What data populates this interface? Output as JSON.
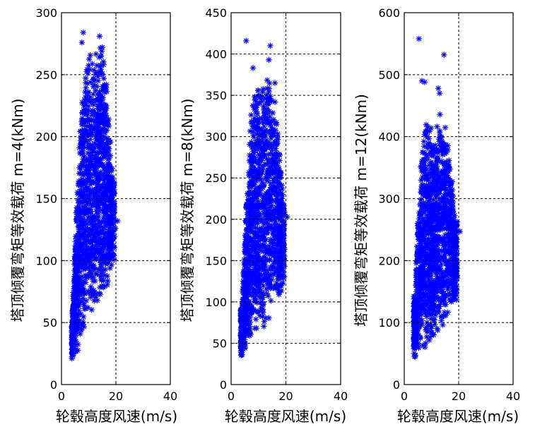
{
  "chart_data": [
    {
      "type": "scatter",
      "xlabel": "轮毂高度风速(m/s)",
      "ylabel": "塔顶倾覆弯矩等效载荷 m=4(kNm)",
      "xlim": [
        0,
        40
      ],
      "ylim": [
        0,
        300
      ],
      "xticks": [
        0,
        20,
        40
      ],
      "yticks": [
        0,
        50,
        100,
        150,
        200,
        250,
        300
      ],
      "grid": true,
      "marker": "*",
      "color": "#0000ff",
      "series": [
        {
          "envelope": {
            "x_min": 3.8,
            "x_max": 19.5,
            "points": [
              {
                "x": 4,
                "lo": 20,
                "hi": 60
              },
              {
                "x": 5,
                "lo": 22,
                "hi": 125
              },
              {
                "x": 6,
                "lo": 25,
                "hi": 170
              },
              {
                "x": 7,
                "lo": 30,
                "hi": 215
              },
              {
                "x": 8,
                "lo": 36,
                "hi": 255
              },
              {
                "x": 9,
                "lo": 42,
                "hi": 280
              },
              {
                "x": 10,
                "lo": 48,
                "hi": 275
              },
              {
                "x": 11,
                "lo": 52,
                "hi": 265
              },
              {
                "x": 12,
                "lo": 56,
                "hi": 268
              },
              {
                "x": 13,
                "lo": 60,
                "hi": 275
              },
              {
                "x": 14,
                "lo": 62,
                "hi": 282
              },
              {
                "x": 15,
                "lo": 65,
                "hi": 280
              },
              {
                "x": 16,
                "lo": 70,
                "hi": 265
              },
              {
                "x": 17,
                "lo": 78,
                "hi": 235
              },
              {
                "x": 18,
                "lo": 88,
                "hi": 200
              },
              {
                "x": 19,
                "lo": 95,
                "hi": 170
              }
            ]
          },
          "outliers": [
            [
              8,
              284
            ],
            [
              7.5,
              276
            ],
            [
              14,
              281
            ],
            [
              15,
              272
            ],
            [
              16.5,
              242
            ],
            [
              20.6,
              132
            ],
            [
              19.8,
              126
            ],
            [
              18.5,
              140
            ],
            [
              4.5,
              32
            ]
          ]
        }
      ]
    },
    {
      "type": "scatter",
      "xlabel": "轮毂高度风速(m/s)",
      "ylabel": "塔顶倾覆弯矩等效载荷 m=8(kNm)",
      "xlim": [
        0,
        40
      ],
      "ylim": [
        0,
        450
      ],
      "xticks": [
        0,
        20,
        40
      ],
      "yticks": [
        0,
        50,
        100,
        150,
        200,
        250,
        300,
        350,
        400,
        450
      ],
      "grid": true,
      "marker": "*",
      "color": "#0000ff",
      "series": [
        {
          "envelope": {
            "x_min": 3.5,
            "x_max": 19.5,
            "points": [
              {
                "x": 4,
                "lo": 30,
                "hi": 100
              },
              {
                "x": 5,
                "lo": 32,
                "hi": 190
              },
              {
                "x": 6,
                "lo": 35,
                "hi": 260
              },
              {
                "x": 7,
                "lo": 40,
                "hi": 320
              },
              {
                "x": 8,
                "lo": 45,
                "hi": 360
              },
              {
                "x": 9,
                "lo": 52,
                "hi": 375
              },
              {
                "x": 10,
                "lo": 58,
                "hi": 380
              },
              {
                "x": 11,
                "lo": 62,
                "hi": 375
              },
              {
                "x": 12,
                "lo": 68,
                "hi": 370
              },
              {
                "x": 13,
                "lo": 72,
                "hi": 380
              },
              {
                "x": 14,
                "lo": 76,
                "hi": 385
              },
              {
                "x": 15,
                "lo": 80,
                "hi": 375
              },
              {
                "x": 16,
                "lo": 88,
                "hi": 350
              },
              {
                "x": 17,
                "lo": 96,
                "hi": 320
              },
              {
                "x": 18,
                "lo": 106,
                "hi": 280
              },
              {
                "x": 19,
                "lo": 115,
                "hi": 230
              }
            ]
          },
          "outliers": [
            [
              5.5,
              416
            ],
            [
              14.3,
              410
            ],
            [
              13.8,
              393
            ],
            [
              8,
              383
            ],
            [
              20.5,
              203
            ],
            [
              16,
              365
            ],
            [
              4,
              36
            ]
          ]
        }
      ]
    },
    {
      "type": "scatter",
      "xlabel": "轮毂高度风速(m/s)",
      "ylabel": "塔顶倾覆弯矩等效载荷 m=12(kNm)",
      "xlim": [
        0,
        40
      ],
      "ylim": [
        0,
        600
      ],
      "xticks": [
        0,
        20,
        40
      ],
      "yticks": [
        0,
        100,
        200,
        300,
        400,
        500,
        600
      ],
      "grid": true,
      "marker": "*",
      "color": "#0000ff",
      "series": [
        {
          "envelope": {
            "x_min": 3.5,
            "x_max": 19.5,
            "points": [
              {
                "x": 4,
                "lo": 40,
                "hi": 150
              },
              {
                "x": 5,
                "lo": 42,
                "hi": 280
              },
              {
                "x": 6,
                "lo": 45,
                "hi": 360
              },
              {
                "x": 7,
                "lo": 50,
                "hi": 420
              },
              {
                "x": 8,
                "lo": 55,
                "hi": 440
              },
              {
                "x": 9,
                "lo": 60,
                "hi": 435
              },
              {
                "x": 10,
                "lo": 65,
                "hi": 430
              },
              {
                "x": 11,
                "lo": 70,
                "hi": 425
              },
              {
                "x": 12,
                "lo": 75,
                "hi": 432
              },
              {
                "x": 13,
                "lo": 80,
                "hi": 440
              },
              {
                "x": 14,
                "lo": 85,
                "hi": 445
              },
              {
                "x": 15,
                "lo": 90,
                "hi": 440
              },
              {
                "x": 16,
                "lo": 100,
                "hi": 410
              },
              {
                "x": 17,
                "lo": 110,
                "hi": 370
              },
              {
                "x": 18,
                "lo": 122,
                "hi": 320
              },
              {
                "x": 19,
                "lo": 130,
                "hi": 270
              }
            ]
          },
          "outliers": [
            [
              5.4,
              558
            ],
            [
              14.6,
              532
            ],
            [
              6.5,
              490
            ],
            [
              7.5,
              488
            ],
            [
              13,
              470
            ],
            [
              20.5,
              247
            ],
            [
              12.5,
              478
            ],
            [
              4,
              45
            ]
          ]
        }
      ]
    }
  ]
}
